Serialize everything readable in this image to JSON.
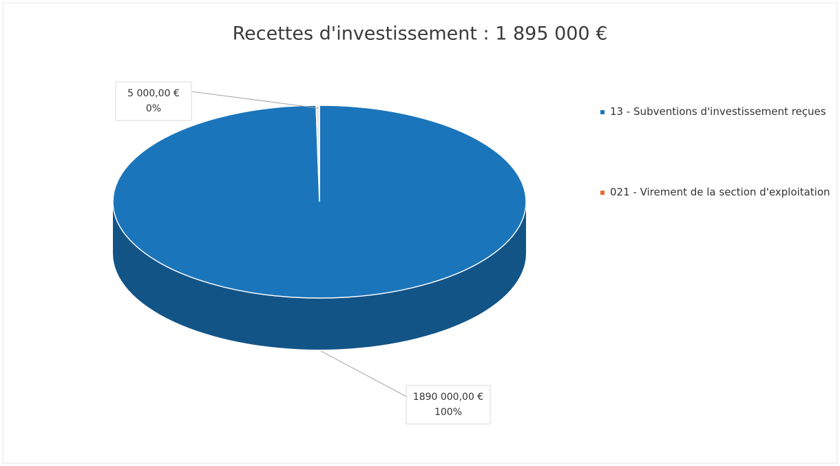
{
  "chart_data": {
    "type": "pie",
    "title": "Recettes d'investissement : 1 895 000 €",
    "series": [
      {
        "name": "13 - Subventions d'investissement reçues",
        "color": "#1b75bb",
        "values": [
          1890000
        ],
        "value_labels": [
          "1890 000,00 €"
        ],
        "percent_labels": [
          "100%"
        ]
      },
      {
        "name": "021 - Virement de la section d'exploitation",
        "color": "#e46c2f",
        "values": [
          5000
        ],
        "value_labels": [
          "5 000,00 €"
        ],
        "percent_labels": [
          "0%"
        ]
      }
    ],
    "legend": "right"
  }
}
